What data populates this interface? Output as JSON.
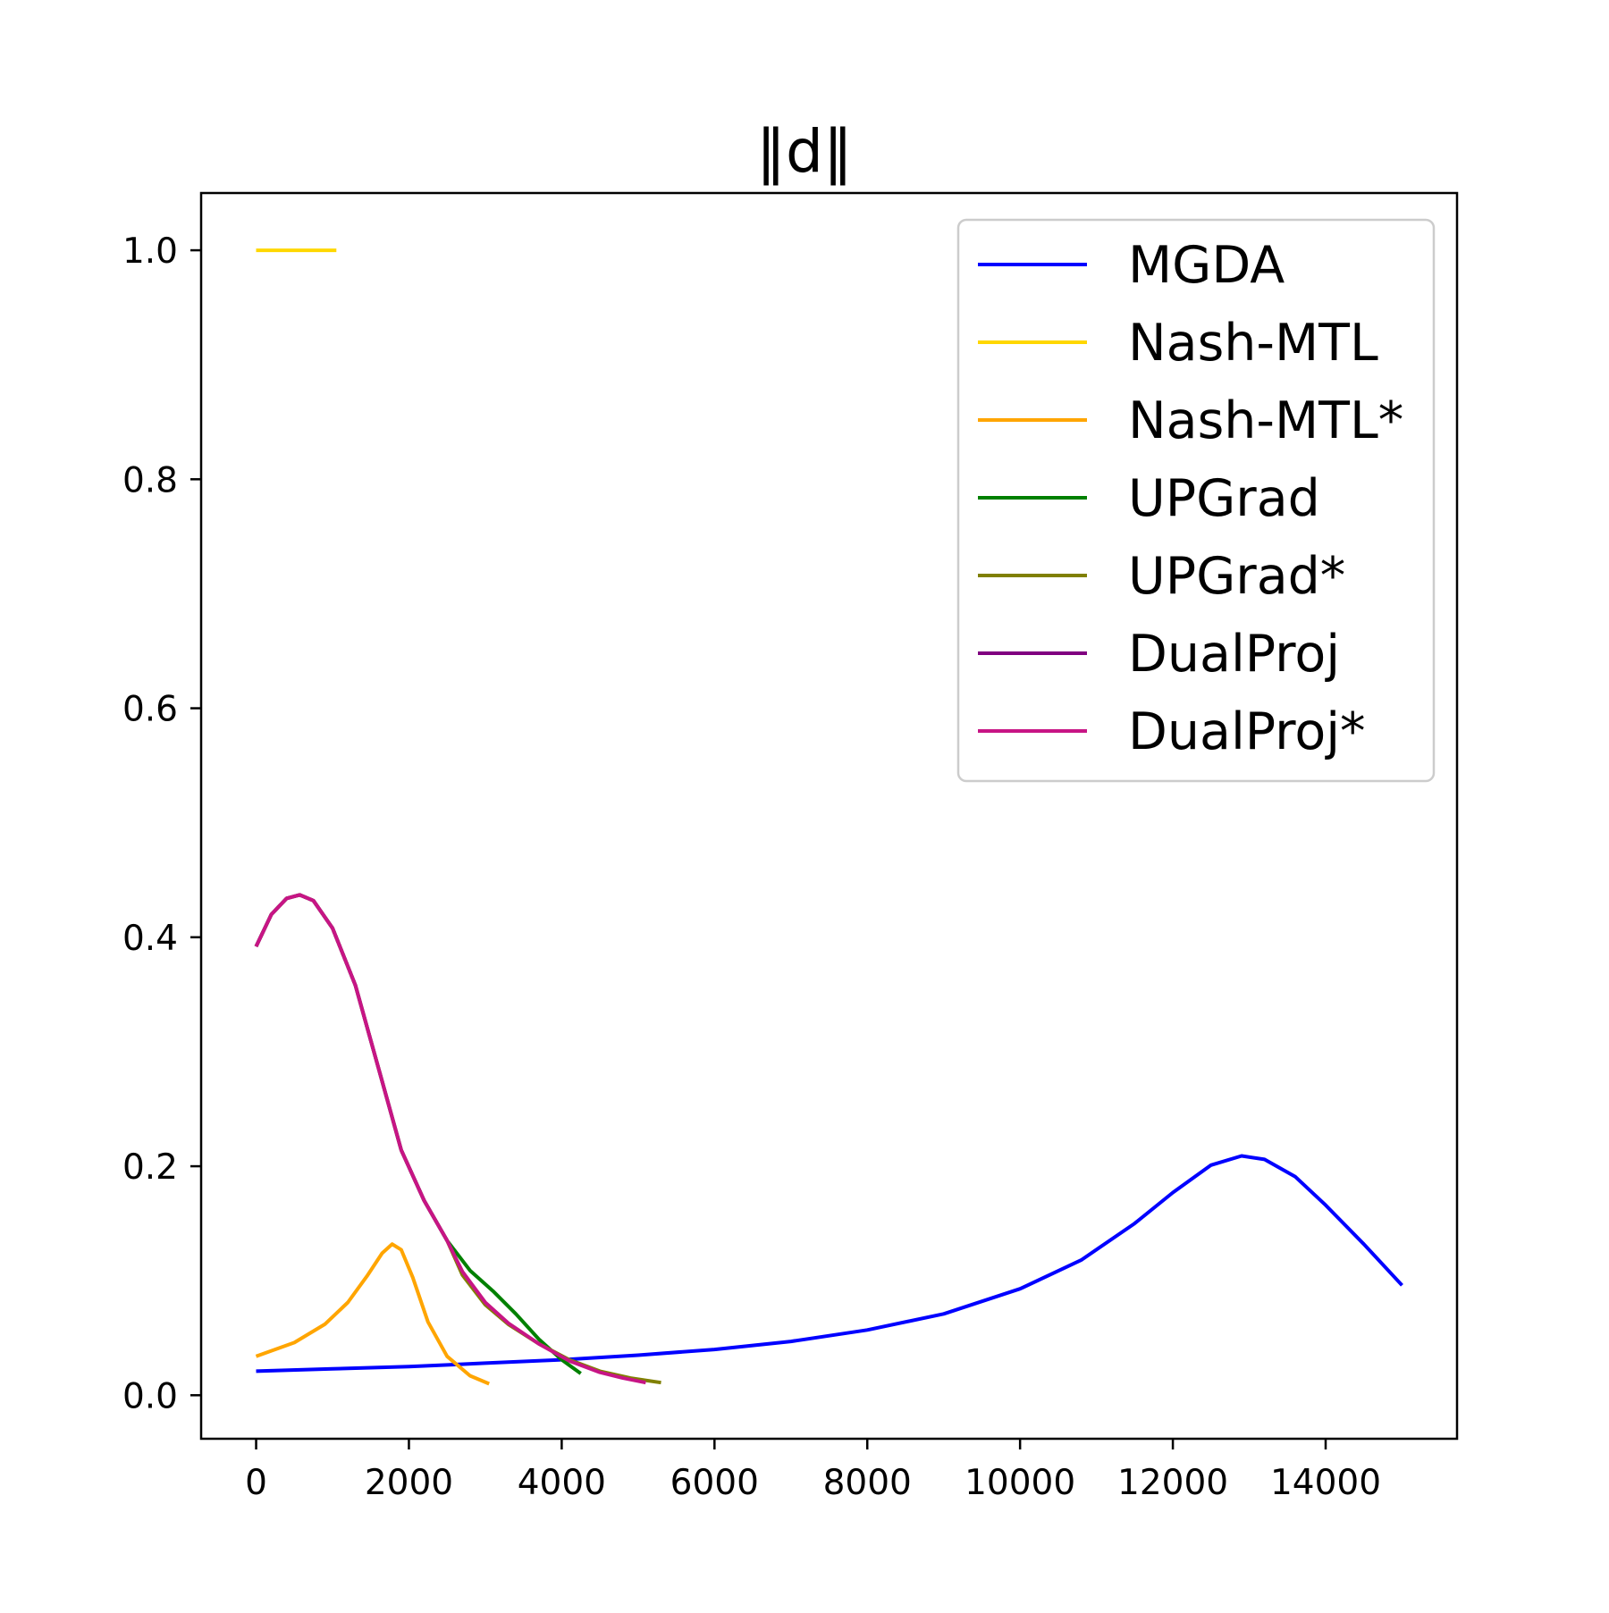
{
  "chart_data": {
    "type": "line",
    "title": "‖d‖",
    "xlabel": "",
    "ylabel": "",
    "xlim": [
      -720,
      15720
    ],
    "ylim": [
      -0.038,
      1.05
    ],
    "xticks": [
      0,
      2000,
      4000,
      6000,
      8000,
      10000,
      12000,
      14000
    ],
    "yticks": [
      0.0,
      0.2,
      0.4,
      0.6,
      0.8,
      1.0
    ],
    "xtick_labels": [
      "0",
      "2000",
      "4000",
      "6000",
      "8000",
      "10000",
      "12000",
      "14000"
    ],
    "ytick_labels": [
      "0.0",
      "0.2",
      "0.4",
      "0.6",
      "0.8",
      "1.0"
    ],
    "grid": false,
    "legend_position": "top-right",
    "series": [
      {
        "name": "MGDA",
        "color": "#0000ff",
        "x": [
          0,
          1000,
          2000,
          3000,
          4000,
          5000,
          6000,
          7000,
          8000,
          9000,
          10000,
          10800,
          11500,
          12000,
          12500,
          12900,
          13200,
          13600,
          14000,
          14500,
          15000
        ],
        "y": [
          0.021,
          0.023,
          0.025,
          0.028,
          0.031,
          0.035,
          0.04,
          0.047,
          0.057,
          0.071,
          0.093,
          0.118,
          0.15,
          0.177,
          0.201,
          0.209,
          0.206,
          0.191,
          0.166,
          0.132,
          0.096
        ]
      },
      {
        "name": "Nash-MTL",
        "color": "#ffd700",
        "x": [
          0,
          1050
        ],
        "y": [
          1.0,
          1.0
        ]
      },
      {
        "name": "Nash-MTL*",
        "color": "#ffa500",
        "x": [
          0,
          500,
          900,
          1200,
          1450,
          1650,
          1780,
          1900,
          2050,
          2250,
          2500,
          2800,
          3050
        ],
        "y": [
          0.034,
          0.046,
          0.062,
          0.081,
          0.104,
          0.124,
          0.132,
          0.127,
          0.103,
          0.064,
          0.034,
          0.017,
          0.01
        ]
      },
      {
        "name": "UPGrad",
        "color": "#008000",
        "x": [
          0,
          200,
          400,
          570,
          750,
          1000,
          1300,
          1600,
          1900,
          2200,
          2500,
          2800,
          3100,
          3400,
          3700,
          4000,
          4250
        ],
        "y": [
          0.392,
          0.42,
          0.434,
          0.437,
          0.432,
          0.408,
          0.358,
          0.286,
          0.214,
          0.17,
          0.135,
          0.109,
          0.091,
          0.071,
          0.049,
          0.031,
          0.019
        ]
      },
      {
        "name": "UPGrad*",
        "color": "#808000",
        "x": [
          0,
          200,
          400,
          570,
          750,
          1000,
          1300,
          1600,
          1900,
          2200,
          2500,
          2700,
          3000,
          3300,
          3700,
          4100,
          4500,
          4900,
          5300
        ],
        "y": [
          0.392,
          0.42,
          0.434,
          0.437,
          0.432,
          0.408,
          0.358,
          0.286,
          0.214,
          0.17,
          0.135,
          0.105,
          0.079,
          0.062,
          0.045,
          0.031,
          0.021,
          0.015,
          0.011
        ]
      },
      {
        "name": "DualProj",
        "color": "#800080",
        "x": [
          0,
          200,
          400,
          570,
          750,
          1000,
          1300,
          1600,
          1900,
          2200,
          2500
        ],
        "y": [
          0.392,
          0.42,
          0.434,
          0.437,
          0.432,
          0.408,
          0.358,
          0.286,
          0.214,
          0.17,
          0.135
        ]
      },
      {
        "name": "DualProj*",
        "color": "#c71585",
        "x": [
          0,
          200,
          400,
          570,
          750,
          1000,
          1300,
          1600,
          1900,
          2200,
          2500,
          2700,
          3000,
          3300,
          3700,
          4100,
          4500,
          4800,
          5100
        ],
        "y": [
          0.392,
          0.42,
          0.434,
          0.437,
          0.432,
          0.408,
          0.358,
          0.286,
          0.214,
          0.17,
          0.135,
          0.108,
          0.081,
          0.063,
          0.045,
          0.03,
          0.02,
          0.015,
          0.011
        ]
      }
    ]
  }
}
